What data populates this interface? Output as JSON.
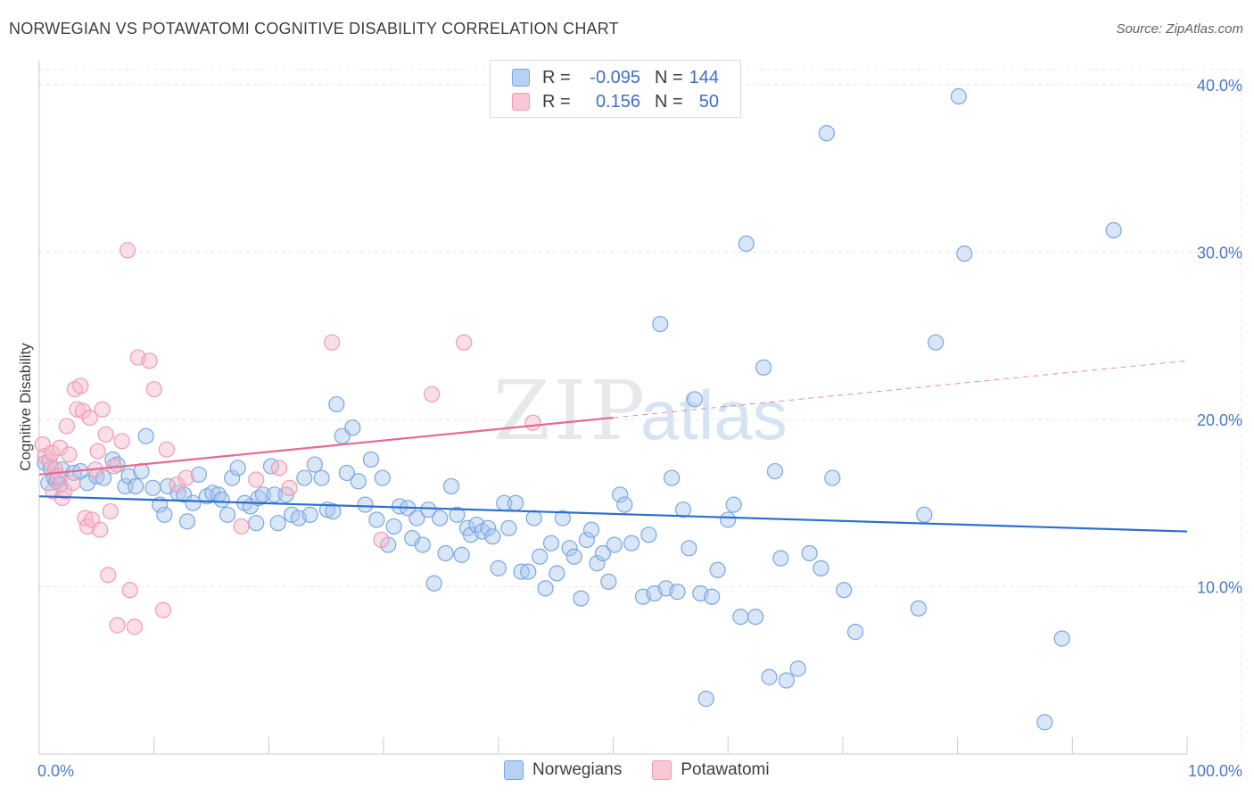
{
  "header": {
    "title": "NORWEGIAN VS POTAWATOMI COGNITIVE DISABILITY CORRELATION CHART",
    "source": "Source: ZipAtlas.com"
  },
  "legend": {
    "rows": [
      {
        "r_label": "R =",
        "r_value": "-0.095",
        "n_label": "N =",
        "n_value": "144"
      },
      {
        "r_label": "R =",
        "r_value": "0.156",
        "n_label": "N =",
        "n_value": "50"
      }
    ]
  },
  "bottom_legend": {
    "norwegians": "Norwegians",
    "potawatomi": "Potawatomi"
  },
  "watermark": {
    "zip": "ZIP",
    "atlas": "atlas"
  },
  "colors": {
    "blue_fill": "#a9c7ef",
    "blue_stroke": "#7aa6e0",
    "blue_line": "#2b6fd0",
    "pink_fill": "#f6b8c9",
    "pink_stroke": "#ee9ab2",
    "pink_line": "#e56a91",
    "grid": "#e2e5ea",
    "tick_text": "#4a78c8"
  },
  "chart_data": {
    "type": "scatter",
    "title": "NORWEGIAN VS POTAWATOMI COGNITIVE DISABILITY CORRELATION CHART",
    "xlabel": "",
    "ylabel": "Cognitive Disability",
    "x_range": [
      0,
      100
    ],
    "y_range": [
      0,
      40.9
    ],
    "x_tick_labels": [
      "0.0%",
      "100.0%"
    ],
    "y_ticks": [
      10,
      20,
      30,
      40
    ],
    "y_tick_labels": [
      "10.0%",
      "20.0%",
      "30.0%",
      "40.0%"
    ],
    "grid": true,
    "legend_position": "top-center",
    "series": [
      {
        "name": "Norwegians",
        "color": "#a9c7ef",
        "r": -0.095,
        "n": 144,
        "trend": {
          "x": [
            0,
            100
          ],
          "y": [
            15.4,
            13.3
          ]
        },
        "points": [
          [
            0.5,
            17.4
          ],
          [
            0.8,
            16.2
          ],
          [
            1.0,
            17.1
          ],
          [
            1.3,
            16.5
          ],
          [
            1.5,
            16.3
          ],
          [
            1.8,
            16.1
          ],
          [
            2.0,
            17.0
          ],
          [
            3.0,
            16.8
          ],
          [
            3.6,
            16.9
          ],
          [
            4.2,
            16.2
          ],
          [
            5.0,
            16.6
          ],
          [
            5.6,
            16.5
          ],
          [
            6.4,
            17.6
          ],
          [
            6.8,
            17.3
          ],
          [
            7.5,
            16.0
          ],
          [
            7.8,
            16.6
          ],
          [
            8.4,
            16.0
          ],
          [
            8.9,
            16.9
          ],
          [
            9.3,
            19.0
          ],
          [
            9.9,
            15.9
          ],
          [
            10.5,
            14.9
          ],
          [
            10.9,
            14.3
          ],
          [
            11.2,
            16.0
          ],
          [
            12.1,
            15.6
          ],
          [
            12.6,
            15.5
          ],
          [
            12.9,
            13.9
          ],
          [
            13.4,
            15.0
          ],
          [
            13.9,
            16.7
          ],
          [
            14.6,
            15.4
          ],
          [
            15.1,
            15.6
          ],
          [
            15.6,
            15.5
          ],
          [
            15.9,
            15.2
          ],
          [
            16.4,
            14.3
          ],
          [
            16.8,
            16.5
          ],
          [
            17.3,
            17.1
          ],
          [
            17.9,
            15.0
          ],
          [
            18.4,
            14.8
          ],
          [
            18.9,
            13.8
          ],
          [
            19.1,
            15.3
          ],
          [
            19.5,
            15.5
          ],
          [
            20.2,
            17.2
          ],
          [
            20.5,
            15.5
          ],
          [
            20.8,
            13.8
          ],
          [
            21.5,
            15.5
          ],
          [
            22.0,
            14.3
          ],
          [
            22.6,
            14.1
          ],
          [
            23.1,
            16.5
          ],
          [
            23.6,
            14.3
          ],
          [
            24.0,
            17.3
          ],
          [
            24.6,
            16.5
          ],
          [
            25.1,
            14.6
          ],
          [
            25.6,
            14.5
          ],
          [
            25.9,
            20.9
          ],
          [
            26.4,
            19.0
          ],
          [
            26.8,
            16.8
          ],
          [
            27.3,
            19.5
          ],
          [
            27.8,
            16.3
          ],
          [
            28.4,
            14.9
          ],
          [
            28.9,
            17.6
          ],
          [
            29.4,
            14.0
          ],
          [
            29.9,
            16.5
          ],
          [
            30.4,
            12.5
          ],
          [
            30.9,
            13.6
          ],
          [
            31.4,
            14.8
          ],
          [
            32.1,
            14.7
          ],
          [
            32.5,
            12.9
          ],
          [
            32.9,
            14.1
          ],
          [
            33.4,
            12.5
          ],
          [
            33.9,
            14.6
          ],
          [
            34.4,
            10.2
          ],
          [
            34.9,
            14.1
          ],
          [
            35.4,
            12.0
          ],
          [
            35.9,
            16.0
          ],
          [
            36.4,
            14.3
          ],
          [
            36.8,
            11.9
          ],
          [
            37.3,
            13.5
          ],
          [
            37.6,
            13.1
          ],
          [
            38.1,
            13.7
          ],
          [
            38.6,
            13.3
          ],
          [
            39.1,
            13.5
          ],
          [
            39.5,
            13.0
          ],
          [
            40.0,
            11.1
          ],
          [
            40.5,
            15.0
          ],
          [
            40.9,
            13.5
          ],
          [
            41.5,
            15.0
          ],
          [
            42.0,
            10.9
          ],
          [
            42.6,
            10.9
          ],
          [
            43.1,
            14.1
          ],
          [
            43.6,
            11.8
          ],
          [
            44.1,
            9.9
          ],
          [
            44.6,
            12.6
          ],
          [
            45.1,
            10.8
          ],
          [
            45.6,
            14.1
          ],
          [
            46.2,
            12.3
          ],
          [
            46.6,
            11.8
          ],
          [
            47.2,
            9.3
          ],
          [
            47.7,
            12.8
          ],
          [
            48.1,
            13.4
          ],
          [
            48.6,
            11.4
          ],
          [
            49.1,
            12.0
          ],
          [
            49.6,
            10.3
          ],
          [
            50.1,
            12.5
          ],
          [
            50.6,
            15.5
          ],
          [
            51.0,
            14.9
          ],
          [
            51.6,
            12.6
          ],
          [
            52.6,
            9.4
          ],
          [
            53.1,
            13.1
          ],
          [
            53.6,
            9.6
          ],
          [
            54.1,
            25.7
          ],
          [
            54.6,
            9.9
          ],
          [
            55.1,
            16.5
          ],
          [
            55.6,
            9.7
          ],
          [
            56.1,
            14.6
          ],
          [
            56.6,
            12.3
          ],
          [
            57.1,
            21.2
          ],
          [
            57.6,
            9.6
          ],
          [
            58.1,
            3.3
          ],
          [
            58.6,
            9.4
          ],
          [
            59.1,
            11.0
          ],
          [
            60.0,
            14.0
          ],
          [
            60.5,
            14.9
          ],
          [
            61.1,
            8.2
          ],
          [
            61.6,
            30.5
          ],
          [
            62.4,
            8.2
          ],
          [
            63.1,
            23.1
          ],
          [
            63.6,
            4.6
          ],
          [
            64.1,
            16.9
          ],
          [
            64.6,
            11.7
          ],
          [
            65.1,
            4.4
          ],
          [
            66.1,
            5.1
          ],
          [
            67.1,
            12.0
          ],
          [
            68.1,
            11.1
          ],
          [
            68.6,
            37.1
          ],
          [
            69.1,
            16.5
          ],
          [
            70.1,
            9.8
          ],
          [
            71.1,
            7.3
          ],
          [
            76.6,
            8.7
          ],
          [
            77.1,
            14.3
          ],
          [
            78.1,
            24.6
          ],
          [
            80.1,
            39.3
          ],
          [
            80.6,
            29.9
          ],
          [
            87.6,
            1.9
          ],
          [
            89.1,
            6.9
          ],
          [
            93.6,
            31.3
          ]
        ]
      },
      {
        "name": "Potawatomi",
        "color": "#f6b8c9",
        "r": 0.156,
        "n": 50,
        "trend": {
          "x": [
            0,
            50
          ],
          "y": [
            16.7,
            20.1
          ]
        },
        "trend_extension": {
          "x": [
            50,
            100
          ],
          "y": [
            20.1,
            23.5
          ]
        },
        "points": [
          [
            0.3,
            18.5
          ],
          [
            0.5,
            17.8
          ],
          [
            0.9,
            17.5
          ],
          [
            1.1,
            18.0
          ],
          [
            1.2,
            15.7
          ],
          [
            1.4,
            17.0
          ],
          [
            1.6,
            16.6
          ],
          [
            1.8,
            18.3
          ],
          [
            2.0,
            15.3
          ],
          [
            2.2,
            15.7
          ],
          [
            2.4,
            19.6
          ],
          [
            2.6,
            17.9
          ],
          [
            2.9,
            16.2
          ],
          [
            3.1,
            21.8
          ],
          [
            3.3,
            20.6
          ],
          [
            3.6,
            22.0
          ],
          [
            3.8,
            20.5
          ],
          [
            4.0,
            14.1
          ],
          [
            4.2,
            13.6
          ],
          [
            4.4,
            20.1
          ],
          [
            4.6,
            14.0
          ],
          [
            4.9,
            17.0
          ],
          [
            5.1,
            18.1
          ],
          [
            5.3,
            13.4
          ],
          [
            5.5,
            20.6
          ],
          [
            5.8,
            19.1
          ],
          [
            6.0,
            10.7
          ],
          [
            6.2,
            14.5
          ],
          [
            6.5,
            17.2
          ],
          [
            6.8,
            7.7
          ],
          [
            7.2,
            18.7
          ],
          [
            7.7,
            30.1
          ],
          [
            7.9,
            9.8
          ],
          [
            8.3,
            7.6
          ],
          [
            8.6,
            23.7
          ],
          [
            9.6,
            23.5
          ],
          [
            10.0,
            21.8
          ],
          [
            10.8,
            8.6
          ],
          [
            11.1,
            18.2
          ],
          [
            12.0,
            16.1
          ],
          [
            12.8,
            16.5
          ],
          [
            17.6,
            13.6
          ],
          [
            18.9,
            16.4
          ],
          [
            20.9,
            17.1
          ],
          [
            21.8,
            15.9
          ],
          [
            25.5,
            24.6
          ],
          [
            29.8,
            12.8
          ],
          [
            34.2,
            21.5
          ],
          [
            37.0,
            24.6
          ],
          [
            43.0,
            19.8
          ]
        ]
      }
    ]
  }
}
